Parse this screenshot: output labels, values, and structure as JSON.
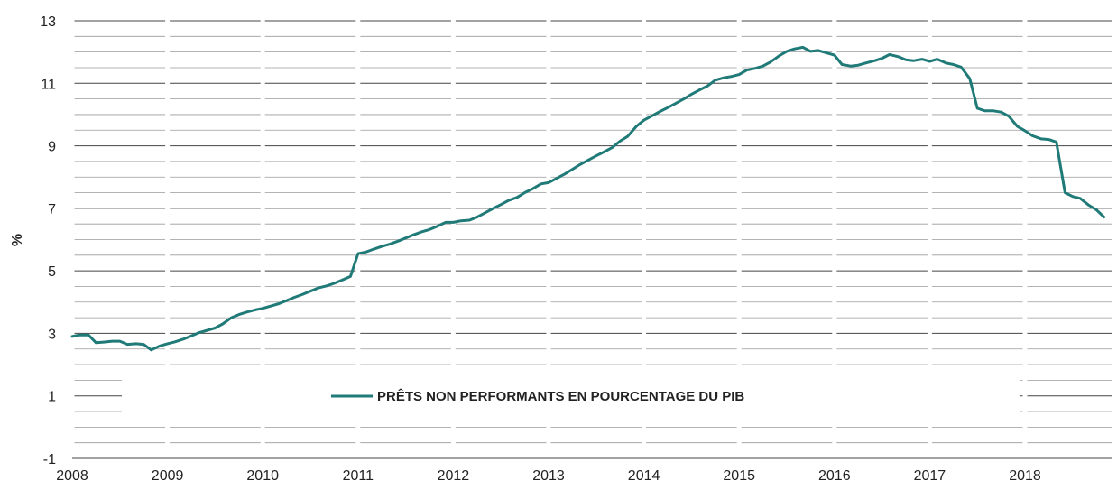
{
  "chart_data": {
    "type": "line",
    "ylabel": "%",
    "xlabel": "",
    "ylim": [
      -1,
      13
    ],
    "xlim": [
      2008,
      2018.9
    ],
    "y_ticks": [
      -1,
      1,
      3,
      5,
      7,
      9,
      11,
      13
    ],
    "x_ticks": [
      2008,
      2009,
      2010,
      2011,
      2012,
      2013,
      2014,
      2015,
      2016,
      2017,
      2018
    ],
    "y_tick_labels": [
      "-1",
      "1",
      "3",
      "5",
      "7",
      "9",
      "11",
      "13"
    ],
    "x_tick_labels": [
      "2008",
      "2009",
      "2010",
      "2011",
      "2012",
      "2013",
      "2014",
      "2015",
      "2016",
      "2017",
      "2018"
    ],
    "grid": true,
    "legend_position": "bottom-center",
    "series": [
      {
        "name": "PRÊTS NON PERFORMANTS EN POURCENTAGE DU PIB",
        "color": "#1f7a78",
        "points": [
          [
            2008.0,
            2.9
          ],
          [
            2008.08,
            2.95
          ],
          [
            2008.17,
            2.95
          ],
          [
            2008.25,
            2.7
          ],
          [
            2008.33,
            2.72
          ],
          [
            2008.42,
            2.75
          ],
          [
            2008.5,
            2.75
          ],
          [
            2008.58,
            2.65
          ],
          [
            2008.67,
            2.67
          ],
          [
            2008.75,
            2.65
          ],
          [
            2008.83,
            2.47
          ],
          [
            2008.92,
            2.6
          ],
          [
            2009.0,
            2.67
          ],
          [
            2009.08,
            2.73
          ],
          [
            2009.17,
            2.82
          ],
          [
            2009.25,
            2.92
          ],
          [
            2009.33,
            3.02
          ],
          [
            2009.42,
            3.1
          ],
          [
            2009.5,
            3.17
          ],
          [
            2009.58,
            3.3
          ],
          [
            2009.67,
            3.5
          ],
          [
            2009.75,
            3.6
          ],
          [
            2009.83,
            3.68
          ],
          [
            2009.92,
            3.75
          ],
          [
            2010.0,
            3.8
          ],
          [
            2010.08,
            3.87
          ],
          [
            2010.17,
            3.95
          ],
          [
            2010.25,
            4.05
          ],
          [
            2010.33,
            4.15
          ],
          [
            2010.42,
            4.25
          ],
          [
            2010.5,
            4.35
          ],
          [
            2010.58,
            4.45
          ],
          [
            2010.67,
            4.52
          ],
          [
            2010.75,
            4.6
          ],
          [
            2010.83,
            4.7
          ],
          [
            2010.92,
            4.82
          ],
          [
            2011.0,
            5.55
          ],
          [
            2011.08,
            5.6
          ],
          [
            2011.17,
            5.7
          ],
          [
            2011.25,
            5.78
          ],
          [
            2011.33,
            5.85
          ],
          [
            2011.42,
            5.95
          ],
          [
            2011.5,
            6.05
          ],
          [
            2011.58,
            6.15
          ],
          [
            2011.67,
            6.25
          ],
          [
            2011.75,
            6.32
          ],
          [
            2011.83,
            6.42
          ],
          [
            2011.92,
            6.55
          ],
          [
            2012.0,
            6.55
          ],
          [
            2012.08,
            6.6
          ],
          [
            2012.17,
            6.62
          ],
          [
            2012.25,
            6.72
          ],
          [
            2012.33,
            6.85
          ],
          [
            2012.42,
            7.0
          ],
          [
            2012.5,
            7.12
          ],
          [
            2012.58,
            7.25
          ],
          [
            2012.67,
            7.35
          ],
          [
            2012.75,
            7.5
          ],
          [
            2012.83,
            7.62
          ],
          [
            2012.92,
            7.78
          ],
          [
            2013.0,
            7.82
          ],
          [
            2013.08,
            7.95
          ],
          [
            2013.17,
            8.1
          ],
          [
            2013.25,
            8.25
          ],
          [
            2013.33,
            8.4
          ],
          [
            2013.42,
            8.55
          ],
          [
            2013.5,
            8.68
          ],
          [
            2013.58,
            8.8
          ],
          [
            2013.67,
            8.95
          ],
          [
            2013.75,
            9.15
          ],
          [
            2013.83,
            9.3
          ],
          [
            2013.92,
            9.62
          ],
          [
            2014.0,
            9.82
          ],
          [
            2014.08,
            9.95
          ],
          [
            2014.17,
            10.1
          ],
          [
            2014.25,
            10.22
          ],
          [
            2014.33,
            10.35
          ],
          [
            2014.42,
            10.5
          ],
          [
            2014.5,
            10.65
          ],
          [
            2014.58,
            10.78
          ],
          [
            2014.67,
            10.92
          ],
          [
            2014.75,
            11.1
          ],
          [
            2014.83,
            11.17
          ],
          [
            2014.92,
            11.22
          ],
          [
            2015.0,
            11.28
          ],
          [
            2015.08,
            11.42
          ],
          [
            2015.17,
            11.48
          ],
          [
            2015.25,
            11.55
          ],
          [
            2015.33,
            11.68
          ],
          [
            2015.42,
            11.88
          ],
          [
            2015.5,
            12.02
          ],
          [
            2015.58,
            12.1
          ],
          [
            2015.67,
            12.15
          ],
          [
            2015.75,
            12.02
          ],
          [
            2015.83,
            12.05
          ],
          [
            2015.92,
            11.97
          ],
          [
            2016.0,
            11.9
          ],
          [
            2016.08,
            11.6
          ],
          [
            2016.17,
            11.55
          ],
          [
            2016.25,
            11.58
          ],
          [
            2016.33,
            11.65
          ],
          [
            2016.42,
            11.72
          ],
          [
            2016.5,
            11.8
          ],
          [
            2016.58,
            11.92
          ],
          [
            2016.67,
            11.85
          ],
          [
            2016.75,
            11.75
          ],
          [
            2016.83,
            11.72
          ],
          [
            2016.92,
            11.77
          ],
          [
            2017.0,
            11.7
          ],
          [
            2017.08,
            11.77
          ],
          [
            2017.17,
            11.65
          ],
          [
            2017.25,
            11.6
          ],
          [
            2017.33,
            11.52
          ],
          [
            2017.42,
            11.15
          ],
          [
            2017.5,
            10.2
          ],
          [
            2017.58,
            10.12
          ],
          [
            2017.67,
            10.12
          ],
          [
            2017.75,
            10.08
          ],
          [
            2017.83,
            9.95
          ],
          [
            2017.92,
            9.62
          ],
          [
            2018.0,
            9.48
          ],
          [
            2018.08,
            9.32
          ],
          [
            2018.17,
            9.22
          ],
          [
            2018.25,
            9.2
          ],
          [
            2018.33,
            9.12
          ],
          [
            2018.42,
            7.5
          ],
          [
            2018.5,
            7.38
          ],
          [
            2018.58,
            7.32
          ],
          [
            2018.67,
            7.1
          ],
          [
            2018.75,
            6.95
          ],
          [
            2018.83,
            6.72
          ]
        ]
      }
    ]
  }
}
